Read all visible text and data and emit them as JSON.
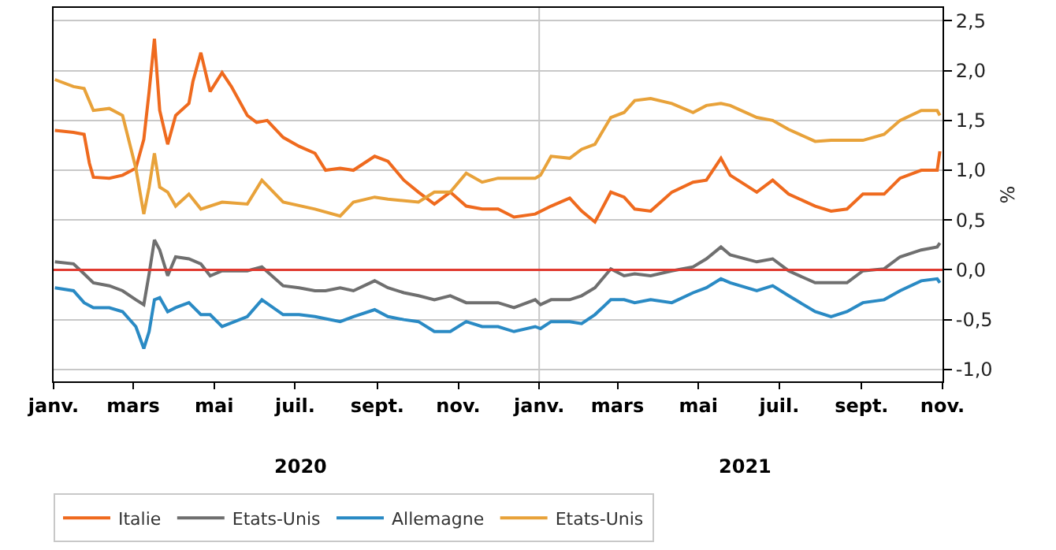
{
  "chart_data": {
    "type": "line",
    "ylabel": "%",
    "xlim": [
      "2020-01-01",
      "2021-11-01"
    ],
    "xticks": [
      {
        "value": "2020-01-01",
        "label": "janv."
      },
      {
        "value": "2020-03-01",
        "label": "mars"
      },
      {
        "value": "2020-05-01",
        "label": "mai"
      },
      {
        "value": "2020-07-01",
        "label": "juil."
      },
      {
        "value": "2020-09-01",
        "label": "sept."
      },
      {
        "value": "2020-11-01",
        "label": "nov."
      },
      {
        "value": "2021-01-01",
        "label": "janv."
      },
      {
        "value": "2021-03-01",
        "label": "mars"
      },
      {
        "value": "2021-05-01",
        "label": "mai"
      },
      {
        "value": "2021-07-01",
        "label": "juil."
      },
      {
        "value": "2021-09-01",
        "label": "sept."
      },
      {
        "value": "2021-11-01",
        "label": "nov."
      }
    ],
    "ylim": [
      -1.12,
      2.63
    ],
    "yticks": [
      {
        "value": -1,
        "label": "-1,0"
      },
      {
        "value": -0.5,
        "label": "-0,5"
      },
      {
        "value": 0,
        "label": "0,0"
      },
      {
        "value": 0.5,
        "label": "0,5"
      },
      {
        "value": 1,
        "label": "1,0"
      },
      {
        "value": 1.5,
        "label": "1,5"
      },
      {
        "value": 2,
        "label": "2,0"
      },
      {
        "value": 2.5,
        "label": "2,5"
      }
    ],
    "grid": "y",
    "legend": "bottom",
    "annotations": [
      "2020",
      "2021"
    ],
    "ref_lines": [
      {
        "axis": "y",
        "value": 0,
        "color": "#e03a2f"
      },
      {
        "axis": "x",
        "value": "2021-01-01",
        "color": "#c8c8c8"
      }
    ],
    "series": [
      {
        "name": "Italie",
        "color": "#ef6a1e",
        "x": [
          "2020-01-02",
          "2020-01-16",
          "2020-01-24",
          "2020-01-28",
          "2020-01-31",
          "2020-02-12",
          "2020-02-22",
          "2020-03-03",
          "2020-03-09",
          "2020-03-13",
          "2020-03-17",
          "2020-03-21",
          "2020-03-27",
          "2020-04-02",
          "2020-04-12",
          "2020-04-15",
          "2020-04-21",
          "2020-04-28",
          "2020-05-07",
          "2020-05-14",
          "2020-05-26",
          "2020-06-02",
          "2020-06-10",
          "2020-06-22",
          "2020-07-04",
          "2020-07-16",
          "2020-07-24",
          "2020-08-04",
          "2020-08-14",
          "2020-08-30",
          "2020-09-09",
          "2020-09-21",
          "2020-10-02",
          "2020-10-14",
          "2020-10-26",
          "2020-11-07",
          "2020-11-19",
          "2020-12-01",
          "2020-12-13",
          "2020-12-29",
          "2021-01-10",
          "2021-01-24",
          "2021-02-02",
          "2021-02-12",
          "2021-02-24",
          "2021-03-06",
          "2021-03-14",
          "2021-03-26",
          "2021-04-11",
          "2021-04-27",
          "2021-05-07",
          "2021-05-18",
          "2021-05-25",
          "2021-06-14",
          "2021-06-26",
          "2021-07-08",
          "2021-07-28",
          "2021-08-09",
          "2021-08-21",
          "2021-09-02",
          "2021-09-18",
          "2021-09-30",
          "2021-10-16",
          "2021-10-28",
          "2021-10-30"
        ],
        "values": [
          1.4,
          1.38,
          1.36,
          1.07,
          0.93,
          0.92,
          0.95,
          1.02,
          1.31,
          1.79,
          2.32,
          1.6,
          1.26,
          1.55,
          1.67,
          1.89,
          2.18,
          1.79,
          1.98,
          1.84,
          1.55,
          1.48,
          1.5,
          1.33,
          1.24,
          1.17,
          1.0,
          1.02,
          1.0,
          1.14,
          1.09,
          0.9,
          0.78,
          0.66,
          0.78,
          0.64,
          0.61,
          0.61,
          0.53,
          0.56,
          0.64,
          0.72,
          0.59,
          0.48,
          0.78,
          0.73,
          0.61,
          0.59,
          0.78,
          0.88,
          0.9,
          1.12,
          0.95,
          0.78,
          0.9,
          0.76,
          0.64,
          0.59,
          0.61,
          0.76,
          0.76,
          0.92,
          1.0,
          1.0,
          1.19
        ]
      },
      {
        "name": "Etats-Unis",
        "color": "#6f6f6f",
        "x": [
          "2020-01-02",
          "2020-01-16",
          "2020-01-24",
          "2020-01-31",
          "2020-02-12",
          "2020-02-22",
          "2020-03-03",
          "2020-03-09",
          "2020-03-13",
          "2020-03-17",
          "2020-03-21",
          "2020-03-27",
          "2020-04-02",
          "2020-04-12",
          "2020-04-21",
          "2020-04-28",
          "2020-05-07",
          "2020-05-26",
          "2020-06-06",
          "2020-06-22",
          "2020-07-04",
          "2020-07-16",
          "2020-07-24",
          "2020-08-04",
          "2020-08-14",
          "2020-08-30",
          "2020-09-09",
          "2020-09-21",
          "2020-10-02",
          "2020-10-14",
          "2020-10-26",
          "2020-11-07",
          "2020-11-19",
          "2020-12-01",
          "2020-12-13",
          "2020-12-29",
          "2021-01-02",
          "2021-01-10",
          "2021-01-24",
          "2021-02-02",
          "2021-02-12",
          "2021-02-24",
          "2021-03-06",
          "2021-03-14",
          "2021-03-26",
          "2021-04-11",
          "2021-04-27",
          "2021-05-07",
          "2021-05-18",
          "2021-05-25",
          "2021-06-14",
          "2021-06-26",
          "2021-07-08",
          "2021-07-28",
          "2021-08-09",
          "2021-08-21",
          "2021-09-02",
          "2021-09-18",
          "2021-09-30",
          "2021-10-16",
          "2021-10-28",
          "2021-10-30"
        ],
        "values": [
          0.08,
          0.06,
          -0.04,
          -0.13,
          -0.16,
          -0.21,
          -0.3,
          -0.35,
          -0.04,
          0.3,
          0.2,
          -0.06,
          0.13,
          0.11,
          0.06,
          -0.06,
          -0.01,
          -0.01,
          0.03,
          -0.16,
          -0.18,
          -0.21,
          -0.21,
          -0.18,
          -0.21,
          -0.11,
          -0.18,
          -0.23,
          -0.26,
          -0.3,
          -0.26,
          -0.33,
          -0.33,
          -0.33,
          -0.38,
          -0.3,
          -0.35,
          -0.3,
          -0.3,
          -0.26,
          -0.18,
          0.01,
          -0.06,
          -0.04,
          -0.06,
          -0.01,
          0.03,
          0.11,
          0.23,
          0.15,
          0.08,
          0.11,
          -0.01,
          -0.13,
          -0.13,
          -0.13,
          -0.01,
          0.01,
          0.13,
          0.2,
          0.23,
          0.27
        ]
      },
      {
        "name": "Allemagne",
        "color": "#2a8ac4",
        "x": [
          "2020-01-02",
          "2020-01-16",
          "2020-01-24",
          "2020-01-31",
          "2020-02-12",
          "2020-02-22",
          "2020-03-03",
          "2020-03-09",
          "2020-03-13",
          "2020-03-17",
          "2020-03-21",
          "2020-03-27",
          "2020-04-02",
          "2020-04-12",
          "2020-04-21",
          "2020-04-28",
          "2020-05-07",
          "2020-05-26",
          "2020-06-06",
          "2020-06-22",
          "2020-07-04",
          "2020-07-16",
          "2020-08-04",
          "2020-08-14",
          "2020-08-30",
          "2020-09-09",
          "2020-09-21",
          "2020-10-02",
          "2020-10-14",
          "2020-10-26",
          "2020-11-07",
          "2020-11-19",
          "2020-12-01",
          "2020-12-13",
          "2020-12-29",
          "2021-01-02",
          "2021-01-10",
          "2021-01-24",
          "2021-02-02",
          "2021-02-12",
          "2021-02-24",
          "2021-03-06",
          "2021-03-14",
          "2021-03-26",
          "2021-04-11",
          "2021-04-27",
          "2021-05-07",
          "2021-05-18",
          "2021-05-25",
          "2021-06-14",
          "2021-06-26",
          "2021-07-08",
          "2021-07-28",
          "2021-08-09",
          "2021-08-21",
          "2021-09-02",
          "2021-09-18",
          "2021-09-30",
          "2021-10-16",
          "2021-10-28",
          "2021-10-30"
        ],
        "values": [
          -0.18,
          -0.21,
          -0.33,
          -0.38,
          -0.38,
          -0.42,
          -0.57,
          -0.79,
          -0.62,
          -0.3,
          -0.28,
          -0.42,
          -0.38,
          -0.33,
          -0.45,
          -0.45,
          -0.57,
          -0.47,
          -0.3,
          -0.45,
          -0.45,
          -0.47,
          -0.52,
          -0.47,
          -0.4,
          -0.47,
          -0.5,
          -0.52,
          -0.62,
          -0.62,
          -0.52,
          -0.57,
          -0.57,
          -0.62,
          -0.57,
          -0.59,
          -0.52,
          -0.52,
          -0.54,
          -0.45,
          -0.3,
          -0.3,
          -0.33,
          -0.3,
          -0.33,
          -0.23,
          -0.18,
          -0.09,
          -0.13,
          -0.21,
          -0.16,
          -0.26,
          -0.42,
          -0.47,
          -0.42,
          -0.33,
          -0.3,
          -0.21,
          -0.11,
          -0.09,
          -0.13
        ]
      },
      {
        "name": "Etats-Unis",
        "color": "#e8a23a",
        "x": [
          "2020-01-02",
          "2020-01-16",
          "2020-01-24",
          "2020-01-31",
          "2020-02-12",
          "2020-02-22",
          "2020-03-03",
          "2020-03-09",
          "2020-03-13",
          "2020-03-17",
          "2020-03-21",
          "2020-03-27",
          "2020-04-02",
          "2020-04-12",
          "2020-04-21",
          "2020-05-07",
          "2020-05-26",
          "2020-06-06",
          "2020-06-22",
          "2020-07-16",
          "2020-08-04",
          "2020-08-14",
          "2020-08-30",
          "2020-09-09",
          "2020-10-02",
          "2020-10-14",
          "2020-10-26",
          "2020-11-07",
          "2020-11-19",
          "2020-12-01",
          "2020-12-13",
          "2020-12-29",
          "2021-01-02",
          "2021-01-10",
          "2021-01-24",
          "2021-02-02",
          "2021-02-12",
          "2021-02-24",
          "2021-03-06",
          "2021-03-14",
          "2021-03-26",
          "2021-04-11",
          "2021-04-27",
          "2021-05-07",
          "2021-05-18",
          "2021-05-25",
          "2021-06-14",
          "2021-06-26",
          "2021-07-08",
          "2021-07-28",
          "2021-08-09",
          "2021-08-21",
          "2021-09-02",
          "2021-09-18",
          "2021-09-30",
          "2021-10-16",
          "2021-10-28",
          "2021-10-30"
        ],
        "values": [
          1.91,
          1.84,
          1.82,
          1.6,
          1.62,
          1.55,
          1.02,
          0.56,
          0.83,
          1.17,
          0.83,
          0.78,
          0.64,
          0.76,
          0.61,
          0.68,
          0.66,
          0.9,
          0.68,
          0.61,
          0.54,
          0.68,
          0.73,
          0.71,
          0.68,
          0.78,
          0.78,
          0.97,
          0.88,
          0.92,
          0.92,
          0.92,
          0.95,
          1.14,
          1.12,
          1.21,
          1.26,
          1.53,
          1.58,
          1.7,
          1.72,
          1.67,
          1.58,
          1.65,
          1.67,
          1.65,
          1.53,
          1.5,
          1.41,
          1.29,
          1.3,
          1.3,
          1.3,
          1.36,
          1.5,
          1.6,
          1.6,
          1.55
        ]
      }
    ]
  }
}
